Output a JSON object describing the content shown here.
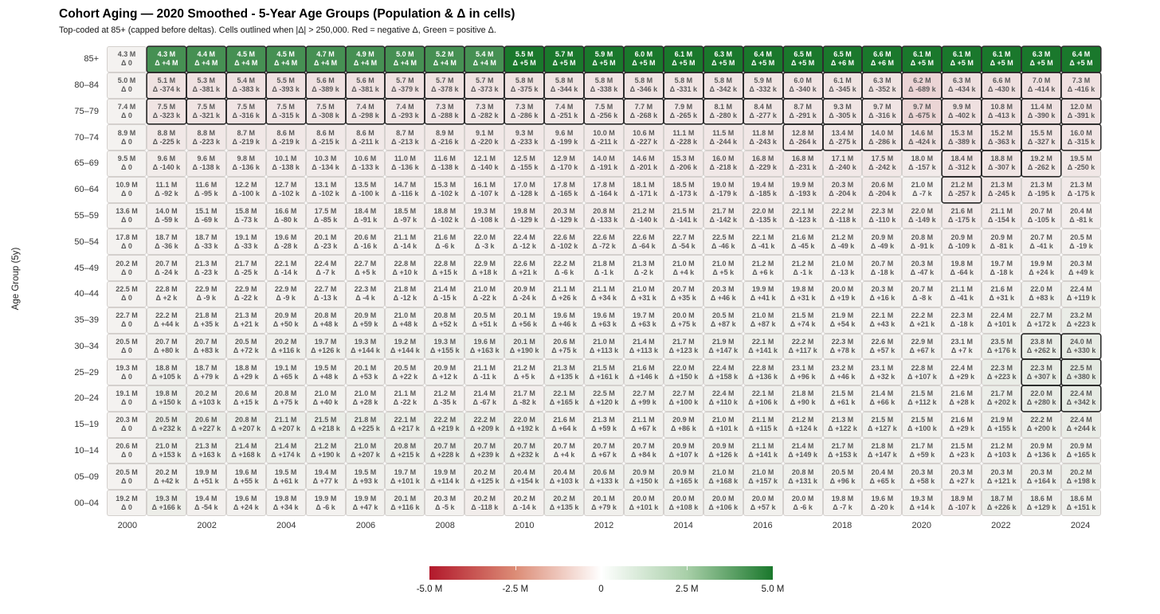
{
  "title": "Cohort Aging — 2020 Smoothed - 5-Year Age Groups (Population & Δ in cells)",
  "subtitle": "Top-coded at 85+ (capped before deltas). Cells outlined when |Δ| > 250,000. Red = negative Δ, Green = positive Δ.",
  "chart_data": {
    "type": "heatmap",
    "title": "Cohort Aging — 2020 Smoothed - 5-Year Age Groups (Population & Δ in cells)",
    "subtitle": "Top-coded at 85+ (capped before deltas). Cells outlined when |Δ| > 250,000. Red = negative Δ, Green = positive Δ.",
    "ylabel": "Age Group (5y)",
    "x_years": [
      2000,
      2001,
      2002,
      2003,
      2004,
      2005,
      2006,
      2007,
      2008,
      2009,
      2010,
      2011,
      2012,
      2013,
      2014,
      2015,
      2016,
      2017,
      2018,
      2019,
      2020,
      2021,
      2022,
      2023,
      2024
    ],
    "x_tick_labels": [
      "2000",
      "2002",
      "2004",
      "2006",
      "2008",
      "2010",
      "2012",
      "2014",
      "2016",
      "2018",
      "2020",
      "2022",
      "2024"
    ],
    "age_groups": [
      "85+",
      "80–84",
      "75–79",
      "70–74",
      "65–69",
      "60–64",
      "55–59",
      "50–54",
      "45–49",
      "40–44",
      "35–39",
      "30–34",
      "25–29",
      "20–24",
      "15–19",
      "10–14",
      "05–09",
      "00–04"
    ],
    "cell_value_units": {
      "population": "M",
      "delta": "k (thousands); deltas ≥ 1000k shown as M"
    },
    "outline_threshold_k": 250,
    "pop_m": [
      [
        4.3,
        4.3,
        4.4,
        4.5,
        4.5,
        4.7,
        4.9,
        5.0,
        5.2,
        5.4,
        5.5,
        5.7,
        5.9,
        6.0,
        6.1,
        6.3,
        6.4,
        6.5,
        6.5,
        6.6,
        6.1,
        6.1,
        6.1,
        6.3,
        6.4
      ],
      [
        5.0,
        5.1,
        5.3,
        5.4,
        5.5,
        5.6,
        5.6,
        5.7,
        5.7,
        5.7,
        5.8,
        5.8,
        5.8,
        5.8,
        5.8,
        5.8,
        5.9,
        6.0,
        6.1,
        6.3,
        6.2,
        6.3,
        6.6,
        7.0,
        7.3
      ],
      [
        7.4,
        7.5,
        7.5,
        7.5,
        7.5,
        7.5,
        7.4,
        7.4,
        7.3,
        7.3,
        7.3,
        7.4,
        7.5,
        7.7,
        7.9,
        8.1,
        8.4,
        8.7,
        9.3,
        9.7,
        9.7,
        9.9,
        10.8,
        11.4,
        12.0
      ],
      [
        8.9,
        8.8,
        8.8,
        8.7,
        8.6,
        8.6,
        8.6,
        8.7,
        8.9,
        9.1,
        9.3,
        9.6,
        10.0,
        10.6,
        11.1,
        11.5,
        11.8,
        12.8,
        13.4,
        14.0,
        14.6,
        15.3,
        15.2,
        15.5,
        16.0
      ],
      [
        9.5,
        9.6,
        9.6,
        9.8,
        10.1,
        10.3,
        10.6,
        11.0,
        11.6,
        12.1,
        12.5,
        12.9,
        14.0,
        14.6,
        15.3,
        16.0,
        16.8,
        16.8,
        17.1,
        17.5,
        18.0,
        18.4,
        18.8,
        19.2,
        19.5
      ],
      [
        10.9,
        11.1,
        11.6,
        12.2,
        12.7,
        13.1,
        13.5,
        14.7,
        15.3,
        16.1,
        17.0,
        17.8,
        17.8,
        18.1,
        18.5,
        19.0,
        19.4,
        19.9,
        20.3,
        20.6,
        21.0,
        21.2,
        21.3,
        21.3,
        21.3
      ],
      [
        13.6,
        14.0,
        15.1,
        15.8,
        16.6,
        17.5,
        18.4,
        18.5,
        18.8,
        19.3,
        19.8,
        20.3,
        20.8,
        21.2,
        21.5,
        21.7,
        22.0,
        22.1,
        22.2,
        22.3,
        22.0,
        21.6,
        21.1,
        20.7,
        20.4
      ],
      [
        17.8,
        18.7,
        18.7,
        19.1,
        19.6,
        20.1,
        20.6,
        21.1,
        21.6,
        22.0,
        22.4,
        22.6,
        22.6,
        22.6,
        22.7,
        22.5,
        22.1,
        21.6,
        21.2,
        20.9,
        20.8,
        20.9,
        20.9,
        20.7,
        20.5
      ],
      [
        20.2,
        20.7,
        21.3,
        21.7,
        22.1,
        22.4,
        22.7,
        22.8,
        22.8,
        22.9,
        22.6,
        22.2,
        21.8,
        21.3,
        21.0,
        21.0,
        21.2,
        21.2,
        21.0,
        20.7,
        20.3,
        19.8,
        19.7,
        19.9,
        20.3
      ],
      [
        22.5,
        22.8,
        22.9,
        22.9,
        22.9,
        22.7,
        22.3,
        21.8,
        21.4,
        21.0,
        20.9,
        21.1,
        21.1,
        21.0,
        20.7,
        20.3,
        19.9,
        19.8,
        20.0,
        20.3,
        20.7,
        21.1,
        21.6,
        22.0,
        22.4
      ],
      [
        22.7,
        22.2,
        21.8,
        21.3,
        20.9,
        20.8,
        20.9,
        21.0,
        20.8,
        20.5,
        20.1,
        19.6,
        19.6,
        19.7,
        20.0,
        20.5,
        21.0,
        21.5,
        21.9,
        22.1,
        22.2,
        22.3,
        22.4,
        22.7,
        23.2
      ],
      [
        20.5,
        20.7,
        20.7,
        20.5,
        20.2,
        19.7,
        19.3,
        19.2,
        19.3,
        19.6,
        20.1,
        20.6,
        21.0,
        21.4,
        21.7,
        21.9,
        22.1,
        22.2,
        22.3,
        22.6,
        22.9,
        23.1,
        23.5,
        23.8,
        24.0
      ],
      [
        19.3,
        18.8,
        18.7,
        18.8,
        19.1,
        19.5,
        20.1,
        20.5,
        20.9,
        21.1,
        21.2,
        21.3,
        21.5,
        21.6,
        22.0,
        22.4,
        22.8,
        23.1,
        23.2,
        23.1,
        22.8,
        22.4,
        22.3,
        22.3,
        22.5
      ],
      [
        19.1,
        19.8,
        20.2,
        20.6,
        20.8,
        21.0,
        21.0,
        21.1,
        21.2,
        21.4,
        21.7,
        22.1,
        22.5,
        22.7,
        22.7,
        22.4,
        22.1,
        21.8,
        21.5,
        21.4,
        21.5,
        21.6,
        21.7,
        22.0,
        22.4
      ],
      [
        20.3,
        20.5,
        20.6,
        20.8,
        21.1,
        21.5,
        21.8,
        22.1,
        22.2,
        22.2,
        22.0,
        21.6,
        21.3,
        21.1,
        20.9,
        21.0,
        21.1,
        21.2,
        21.3,
        21.5,
        21.5,
        21.6,
        21.9,
        22.2,
        22.4
      ],
      [
        20.6,
        21.0,
        21.3,
        21.4,
        21.4,
        21.2,
        21.0,
        20.8,
        20.7,
        20.7,
        20.7,
        20.7,
        20.7,
        20.7,
        20.9,
        20.9,
        21.1,
        21.4,
        21.7,
        21.8,
        21.7,
        21.5,
        21.2,
        20.9,
        20.9
      ],
      [
        20.5,
        20.2,
        19.9,
        19.6,
        19.5,
        19.4,
        19.5,
        19.7,
        19.9,
        20.2,
        20.4,
        20.4,
        20.6,
        20.9,
        20.9,
        21.0,
        21.0,
        20.8,
        20.5,
        20.4,
        20.3,
        20.3,
        20.3,
        20.3,
        20.2
      ],
      [
        19.2,
        19.3,
        19.4,
        19.6,
        19.8,
        19.9,
        19.9,
        20.1,
        20.3,
        20.2,
        20.2,
        20.2,
        20.1,
        20.0,
        20.0,
        20.0,
        20.0,
        20.0,
        19.8,
        19.6,
        19.3,
        18.9,
        18.7,
        18.6,
        18.6
      ]
    ],
    "delta_k": [
      [
        0,
        4000,
        4000,
        4000,
        4000,
        4000,
        4000,
        4000,
        4000,
        4000,
        5000,
        5000,
        5000,
        5000,
        5000,
        5000,
        5000,
        5000,
        6000,
        6000,
        5000,
        5000,
        5000,
        5000,
        5000
      ],
      [
        0,
        -374,
        -381,
        -383,
        -393,
        -389,
        -381,
        -379,
        -378,
        -373,
        -375,
        -344,
        -338,
        -346,
        -331,
        -342,
        -332,
        -340,
        -345,
        -352,
        -689,
        -434,
        -430,
        -414,
        -416
      ],
      [
        0,
        -323,
        -321,
        -316,
        -315,
        -308,
        -298,
        -293,
        -288,
        -282,
        -286,
        -251,
        -256,
        -268,
        -265,
        -280,
        -277,
        -291,
        -305,
        -316,
        -675,
        -402,
        -413,
        -390,
        -391
      ],
      [
        0,
        -225,
        -223,
        -219,
        -219,
        -215,
        -211,
        -213,
        -216,
        -220,
        -233,
        -199,
        -211,
        -227,
        -228,
        -244,
        -243,
        -264,
        -275,
        -286,
        -424,
        -389,
        -363,
        -327,
        -315
      ],
      [
        0,
        -140,
        -138,
        -136,
        -138,
        -134,
        -133,
        -136,
        -138,
        -140,
        -155,
        -170,
        -191,
        -201,
        -206,
        -218,
        -229,
        -231,
        -240,
        -242,
        -157,
        -312,
        -307,
        -262,
        -250
      ],
      [
        0,
        -92,
        -95,
        -100,
        -102,
        -102,
        -100,
        -116,
        -102,
        -107,
        -128,
        -165,
        -164,
        -171,
        -173,
        -179,
        -185,
        -193,
        -204,
        -204,
        -7,
        -257,
        -245,
        -195,
        -175
      ],
      [
        0,
        -59,
        -69,
        -73,
        -80,
        -85,
        -91,
        -97,
        -102,
        -108,
        -129,
        -129,
        -133,
        -140,
        -141,
        -142,
        -135,
        -123,
        -118,
        -110,
        -149,
        -175,
        -154,
        -105,
        -81
      ],
      [
        0,
        -36,
        -33,
        -33,
        -28,
        -23,
        -16,
        -14,
        -6,
        -3,
        -12,
        -102,
        -72,
        -64,
        -54,
        -46,
        -41,
        -45,
        -49,
        -49,
        -91,
        -109,
        -81,
        -41,
        -19
      ],
      [
        0,
        -24,
        -23,
        -25,
        -14,
        -7,
        5,
        10,
        15,
        18,
        21,
        -6,
        -1,
        -2,
        4,
        5,
        6,
        -1,
        -13,
        -18,
        -47,
        -64,
        -18,
        24,
        49
      ],
      [
        0,
        2,
        -9,
        -22,
        -9,
        -13,
        -4,
        -12,
        -15,
        -22,
        -24,
        26,
        34,
        31,
        35,
        46,
        41,
        31,
        19,
        16,
        -8,
        -41,
        31,
        83,
        119
      ],
      [
        0,
        44,
        35,
        21,
        50,
        48,
        59,
        48,
        52,
        51,
        56,
        46,
        63,
        63,
        75,
        87,
        87,
        74,
        54,
        43,
        21,
        -18,
        101,
        172,
        223
      ],
      [
        0,
        80,
        83,
        72,
        116,
        126,
        144,
        144,
        155,
        163,
        190,
        75,
        113,
        113,
        123,
        147,
        141,
        117,
        78,
        57,
        67,
        7,
        176,
        262,
        330
      ],
      [
        0,
        105,
        79,
        29,
        65,
        48,
        53,
        22,
        12,
        -11,
        5,
        135,
        161,
        146,
        150,
        158,
        136,
        96,
        46,
        32,
        107,
        29,
        223,
        307,
        380
      ],
      [
        0,
        150,
        103,
        15,
        75,
        40,
        28,
        -22,
        -35,
        -67,
        -82,
        165,
        120,
        99,
        100,
        110,
        106,
        90,
        61,
        66,
        112,
        28,
        202,
        280,
        342
      ],
      [
        0,
        232,
        227,
        207,
        207,
        218,
        225,
        217,
        219,
        209,
        192,
        64,
        59,
        67,
        86,
        101,
        115,
        124,
        122,
        127,
        100,
        29,
        155,
        200,
        244
      ],
      [
        0,
        153,
        163,
        168,
        174,
        190,
        207,
        215,
        228,
        239,
        232,
        4,
        67,
        84,
        107,
        126,
        141,
        149,
        153,
        147,
        59,
        23,
        103,
        136,
        165
      ],
      [
        0,
        42,
        51,
        55,
        61,
        77,
        93,
        101,
        114,
        125,
        154,
        103,
        133,
        150,
        165,
        168,
        157,
        131,
        96,
        65,
        58,
        27,
        121,
        164,
        198
      ],
      [
        0,
        166,
        -54,
        24,
        34,
        -6,
        47,
        116,
        -5,
        -118,
        -14,
        135,
        79,
        101,
        108,
        106,
        57,
        -6,
        -7,
        -20,
        14,
        -107,
        226,
        129,
        151
      ]
    ],
    "colorbar": {
      "tick_labels": [
        "-5.0 M",
        "-2.5 M",
        "0",
        "2.5 M",
        "5.0 M"
      ],
      "min_m": -5.0,
      "max_m": 5.0,
      "orientation": "horizontal"
    },
    "colors": {
      "negative_end": "#b2182b",
      "center": "#f4f2f0",
      "positive_end": "#1a782c",
      "outline": "#2e2e2e",
      "cell_text": "#5a5a5a",
      "cell_text_on_dark": "#ffffff"
    },
    "legend_position": "bottom-center",
    "grid": false
  }
}
